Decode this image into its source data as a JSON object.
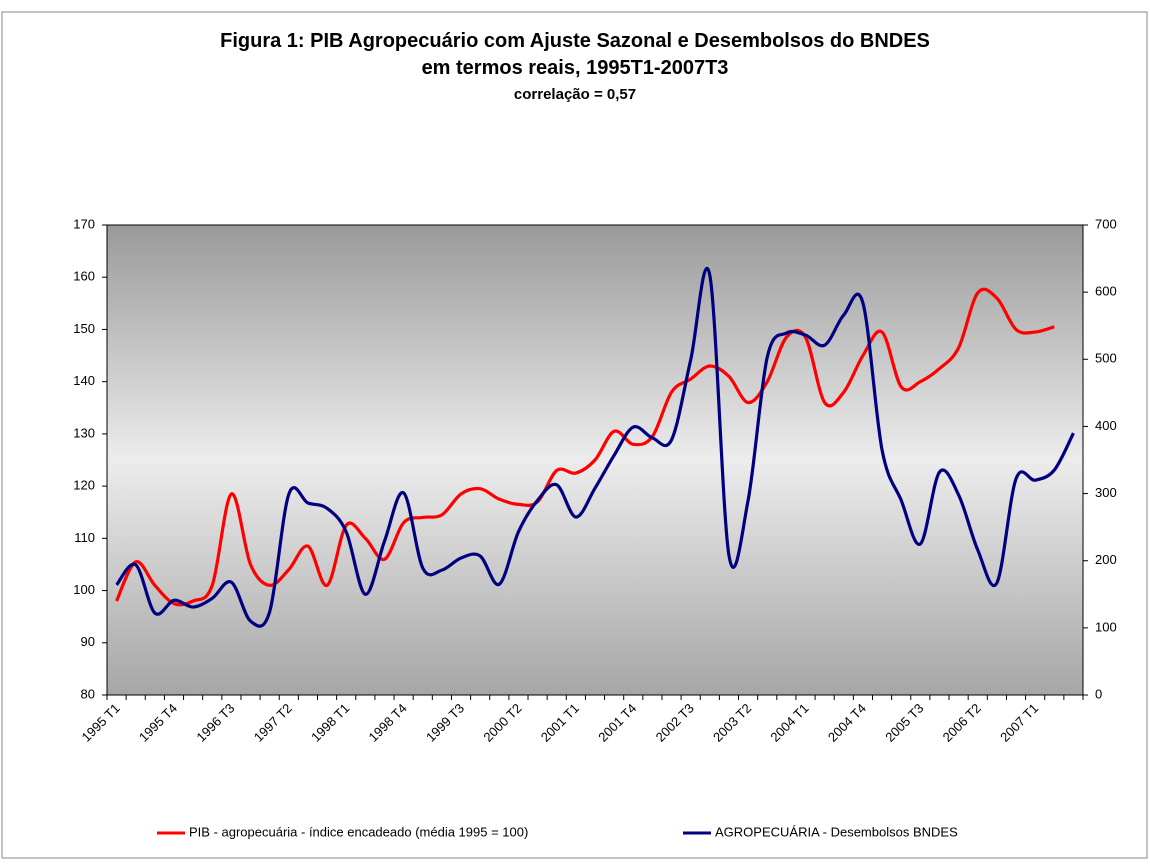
{
  "chart_data": {
    "type": "line",
    "title": [
      "Figura 1: PIB Agropecuário com Ajuste Sazonal e Desembolsos do BNDES",
      "em termos reais, 1995T1-2007T3"
    ],
    "subtitle": "correlação = 0,57",
    "categories": [
      "1995 T1",
      null,
      null,
      "1995 T4",
      null,
      null,
      "1996 T3",
      null,
      null,
      "1997 T2",
      null,
      null,
      "1998 T1",
      null,
      null,
      "1998 T4",
      null,
      null,
      "1999 T3",
      null,
      null,
      "2000 T2",
      null,
      null,
      "2001 T1",
      null,
      null,
      "2001 T4",
      null,
      null,
      "2002 T3",
      null,
      null,
      "2003 T2",
      null,
      null,
      "2004 T1",
      null,
      null,
      "2004 T4",
      null,
      null,
      "2005 T3",
      null,
      null,
      "2006 T2",
      null,
      null,
      "2007 T1",
      null,
      null
    ],
    "series": [
      {
        "name": "PIB - agropecuária - índice encadeado (média 1995 = 100)",
        "color": "#ff0000",
        "axis": "y",
        "values": [
          98,
          105.5,
          101,
          97.5,
          98,
          101,
          118.5,
          105,
          101,
          104,
          108.5,
          101,
          112.5,
          110,
          106,
          113,
          114,
          114.5,
          118.5,
          119.5,
          117.5,
          116.5,
          117,
          123,
          122.5,
          125,
          130.5,
          128,
          129.5,
          138,
          140.5,
          143,
          141,
          136,
          140,
          148.5,
          148.5,
          136,
          138,
          145,
          149.5,
          139,
          140,
          142.5,
          146.5,
          157,
          156,
          150,
          149.5,
          150.5,
          null
        ]
      },
      {
        "name": "AGROPECUÁRIA - Desembolsos BNDES",
        "color": "#000080",
        "axis": "y2",
        "values": [
          164,
          194,
          122,
          141,
          131,
          144,
          168,
          110,
          124,
          299,
          286,
          278,
          243,
          150,
          229,
          301,
          189,
          186,
          204,
          207,
          165,
          243,
          290,
          313,
          265,
          308,
          357,
          399,
          383,
          380,
          499,
          625,
          208,
          290,
          503,
          539,
          536,
          521,
          566,
          584,
          365,
          290,
          225,
          332,
          298,
          216,
          167,
          322,
          320,
          335,
          390
        ]
      }
    ],
    "ylim": [
      80,
      170
    ],
    "yticks": [
      80,
      90,
      100,
      110,
      120,
      130,
      140,
      150,
      160,
      170
    ],
    "y2lim": [
      0,
      700
    ],
    "y2ticks": [
      0,
      100,
      200,
      300,
      400,
      500,
      600,
      700
    ],
    "legend": "bottom"
  }
}
